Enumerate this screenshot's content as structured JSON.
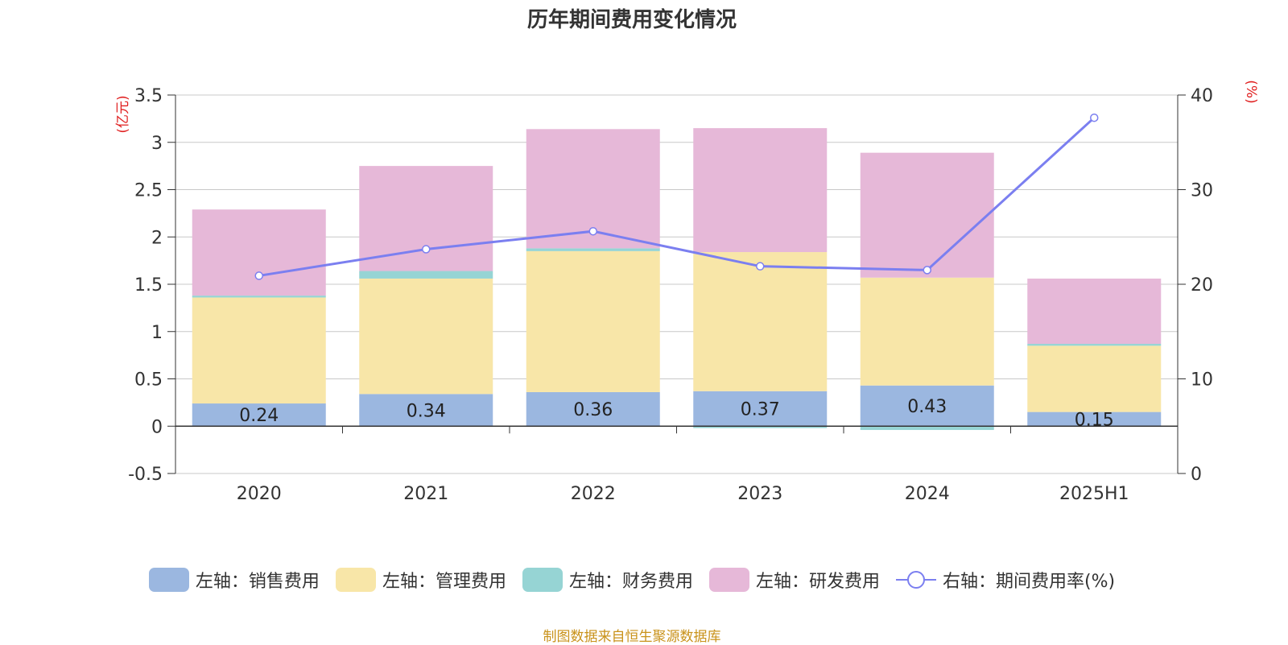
{
  "title": "历年期间费用变化情况",
  "source": "制图数据来自恒生聚源数据库",
  "left_unit": "(亿元)",
  "right_unit": "(%)",
  "chart_data": {
    "type": "bar",
    "stacked": true,
    "title": "历年期间费用变化情况",
    "categories": [
      "2020",
      "2021",
      "2022",
      "2023",
      "2024",
      "2025H1"
    ],
    "y_left": {
      "label": "(亿元)",
      "ylim": [
        -0.5,
        3.5
      ],
      "ticks": [
        "-0.5",
        "0",
        "0.5",
        "1",
        "1.5",
        "2",
        "2.5",
        "3",
        "3.5"
      ]
    },
    "y_right": {
      "label": "(%)",
      "ylim": [
        0,
        40
      ],
      "ticks": [
        "0",
        "10",
        "20",
        "30",
        "40"
      ]
    },
    "grid": true,
    "legend_position": "bottom",
    "series": [
      {
        "name": "左轴：销售费用",
        "type": "bar",
        "axis": "left",
        "color": "#9bb7e0",
        "values": [
          0.24,
          0.34,
          0.36,
          0.37,
          0.43,
          0.15
        ],
        "labels": [
          "0.24",
          "0.34",
          "0.36",
          "0.37",
          "0.43",
          "0.15"
        ]
      },
      {
        "name": "左轴：管理费用",
        "type": "bar",
        "axis": "left",
        "color": "#f8e6a8",
        "values": [
          1.12,
          1.22,
          1.49,
          1.47,
          1.14,
          0.7
        ]
      },
      {
        "name": "左轴：财务费用",
        "type": "bar",
        "axis": "left",
        "color": "#96d4d4",
        "values": [
          0.02,
          0.08,
          0.03,
          -0.02,
          -0.04,
          0.02
        ]
      },
      {
        "name": "左轴：研发费用",
        "type": "bar",
        "axis": "left",
        "color": "#e6b8d8",
        "values": [
          0.91,
          1.11,
          1.26,
          1.31,
          1.32,
          0.69
        ]
      },
      {
        "name": "右轴：期间费用率(%)",
        "type": "line",
        "axis": "right",
        "color": "#7b7ff0",
        "values": [
          20.9,
          23.7,
          25.6,
          21.9,
          21.5,
          37.6
        ]
      }
    ]
  }
}
